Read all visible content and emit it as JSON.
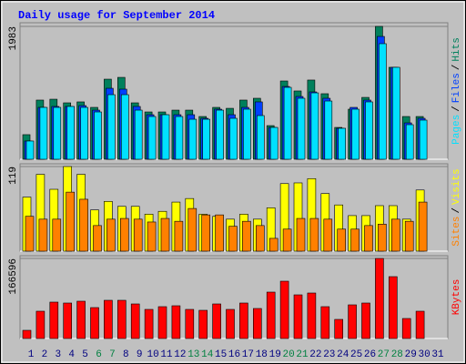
{
  "title": "Daily usage for September 2014",
  "legend_separator": "/",
  "chart_data": [
    {
      "type": "bar",
      "ylim": [
        0,
        1983
      ],
      "yticks": [
        1983
      ],
      "series": [
        {
          "name": "Hits",
          "color": "#00805c",
          "values": [
            367,
            883,
            896,
            842,
            856,
            774,
            1195,
            1222,
            842,
            706,
            706,
            733,
            733,
            638,
            774,
            760,
            883,
            910,
            502,
            1168,
            1019,
            1182,
            978,
            475,
            747,
            923,
            1983,
            1372,
            638,
            638,
            null
          ]
        },
        {
          "name": "Files",
          "color": "#0040ff",
          "values": [
            272,
            774,
            788,
            788,
            801,
            733,
            1059,
            1046,
            788,
            665,
            665,
            665,
            665,
            611,
            747,
            665,
            774,
            856,
            475,
            1086,
            937,
            1005,
            910,
            462,
            774,
            883,
            1833,
            1372,
            543,
            611,
            null
          ]
        },
        {
          "name": "Pages",
          "color": "#00e0ff",
          "values": [
            272,
            774,
            774,
            788,
            774,
            706,
            964,
            964,
            733,
            638,
            665,
            638,
            597,
            597,
            733,
            611,
            747,
            652,
            475,
            1073,
            910,
            991,
            869,
            462,
            747,
            856,
            1725,
            1372,
            516,
            584,
            null
          ]
        }
      ]
    },
    {
      "type": "bar",
      "ylim": [
        0,
        119
      ],
      "yticks": [
        119
      ],
      "series": [
        {
          "name": "Visits",
          "color": "#ffff00",
          "values": [
            76,
            108,
            87,
            119,
            108,
            58,
            70,
            63,
            63,
            52,
            56,
            69,
            74,
            52,
            49,
            45,
            52,
            45,
            61,
            95,
            96,
            102,
            81,
            65,
            50,
            50,
            64,
            64,
            45,
            86,
            null
          ]
        },
        {
          "name": "Sites",
          "color": "#ff8000",
          "values": [
            49,
            45,
            45,
            83,
            73,
            36,
            45,
            46,
            45,
            41,
            46,
            42,
            60,
            51,
            51,
            35,
            42,
            36,
            18,
            31,
            46,
            46,
            45,
            31,
            31,
            36,
            38,
            45,
            42,
            69,
            null
          ]
        }
      ]
    },
    {
      "type": "bar",
      "ylim": [
        0,
        166596
      ],
      "yticks": [
        166596
      ],
      "categories": [
        "1",
        "2",
        "3",
        "4",
        "5",
        "6",
        "7",
        "8",
        "9",
        "10",
        "11",
        "12",
        "13",
        "14",
        "15",
        "16",
        "17",
        "18",
        "19",
        "20",
        "21",
        "22",
        "23",
        "24",
        "25",
        "26",
        "27",
        "28",
        "29",
        "30",
        "31"
      ],
      "category_colors": [
        "#000080",
        "#000080",
        "#000080",
        "#000080",
        "#000080",
        "#008040",
        "#008040",
        "#000080",
        "#000080",
        "#000080",
        "#000080",
        "#000080",
        "#008040",
        "#008040",
        "#000080",
        "#000080",
        "#000080",
        "#000080",
        "#000080",
        "#008040",
        "#008040",
        "#000080",
        "#000080",
        "#000080",
        "#000080",
        "#000080",
        "#008040",
        "#008040",
        "#000080",
        "#000080",
        "#000080"
      ],
      "series": [
        {
          "name": "KBytes",
          "color": "#ff0000",
          "values": [
            17037,
            56790,
            75720,
            73827,
            77613,
            64362,
            79506,
            79506,
            71934,
            60576,
            66255,
            68148,
            60576,
            58683,
            71934,
            60576,
            73827,
            62469,
            96543,
            119259,
            90864,
            94650,
            66255,
            39753,
            70041,
            73827,
            166596,
            128724,
            41646,
            56790,
            null
          ]
        }
      ]
    }
  ]
}
